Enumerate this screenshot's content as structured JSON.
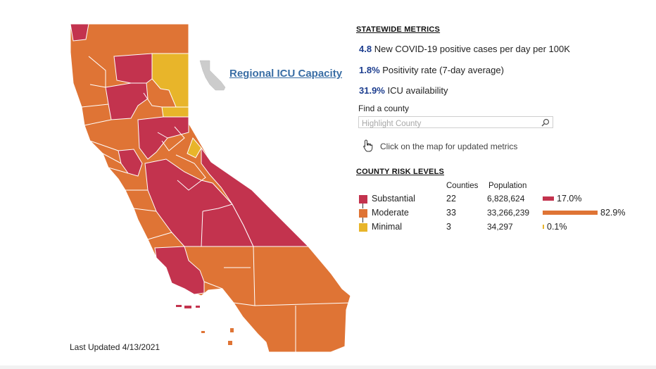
{
  "map": {
    "link_label": "Regional ICU Capacity",
    "last_updated": "Last Updated 4/13/2021",
    "colors": {
      "substantial": "#c3334e",
      "moderate": "#df7435",
      "minimal": "#e8b52a",
      "inset": "#cccccc"
    }
  },
  "metrics": {
    "heading": "STATEWIDE METRICS",
    "items": [
      {
        "value": "4.8",
        "label": "New COVID-19 positive cases per day per 100K"
      },
      {
        "value": "1.8%",
        "label": "Positivity rate (7-day average)"
      },
      {
        "value": "31.9%",
        "label": "ICU availability"
      }
    ]
  },
  "search": {
    "label": "Find a county",
    "placeholder": "Highlight County",
    "icon": "search-icon"
  },
  "hint": {
    "text": "Click on the map for updated metrics",
    "icon": "hand-pointer-icon"
  },
  "risk": {
    "heading": "COUNTY RISK LEVELS",
    "columns": {
      "counties": "Counties",
      "population": "Population"
    },
    "rows": [
      {
        "level": "Substantial",
        "counties": "22",
        "population": "6,828,624",
        "pct_label": "17.0%",
        "pct": 17.0,
        "color": "#c3334e"
      },
      {
        "level": "Moderate",
        "counties": "33",
        "population": "33,266,239",
        "pct_label": "82.9%",
        "pct": 82.9,
        "color": "#df7435"
      },
      {
        "level": "Minimal",
        "counties": "3",
        "population": "34,297",
        "pct_label": "0.1%",
        "pct": 0.1,
        "color": "#e8b52a"
      }
    ]
  }
}
